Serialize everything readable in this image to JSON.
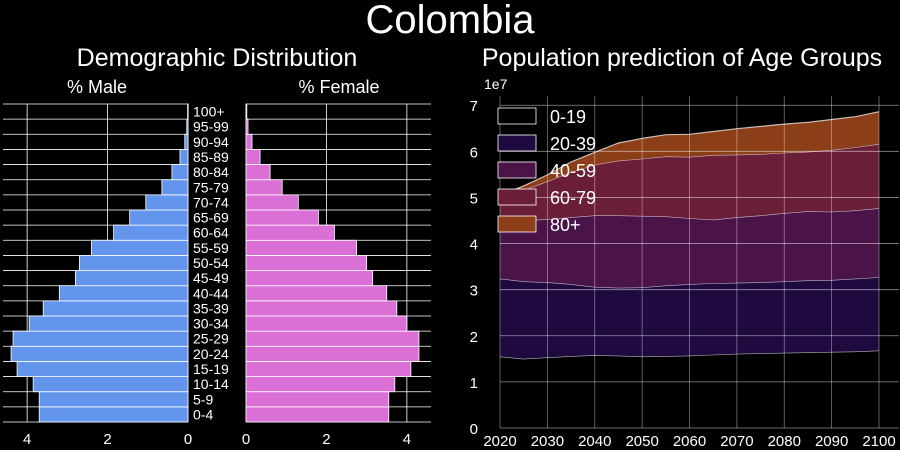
{
  "figure": {
    "title": "Colombia"
  },
  "chart_data": [
    {
      "type": "bar",
      "title": "Demographic Distribution",
      "male_label": "% Male",
      "female_label": "% Female",
      "orientation": "horizontal-pyramid",
      "age_groups": [
        "0-4",
        "5-9",
        "10-14",
        "15-19",
        "20-24",
        "25-29",
        "30-34",
        "35-39",
        "40-44",
        "45-49",
        "50-54",
        "55-59",
        "60-64",
        "65-69",
        "70-74",
        "75-79",
        "80-84",
        "85-89",
        "90-94",
        "95-99",
        "100+"
      ],
      "male": [
        3.7,
        3.7,
        3.85,
        4.25,
        4.4,
        4.35,
        3.95,
        3.6,
        3.2,
        2.8,
        2.7,
        2.4,
        1.85,
        1.45,
        1.05,
        0.65,
        0.4,
        0.2,
        0.08,
        0.03,
        0.01
      ],
      "female": [
        3.55,
        3.55,
        3.7,
        4.1,
        4.3,
        4.3,
        4.0,
        3.75,
        3.5,
        3.15,
        3.0,
        2.75,
        2.2,
        1.8,
        1.3,
        0.9,
        0.6,
        0.35,
        0.15,
        0.05,
        0.02
      ],
      "male_xlim": [
        0,
        4.6
      ],
      "female_xlim": [
        0,
        4.6
      ],
      "male_ticks": [
        4,
        2,
        0
      ],
      "female_ticks": [
        0,
        2,
        4
      ],
      "colors": {
        "male": "#6495ed",
        "female": "#da70d6"
      },
      "grid": true
    },
    {
      "type": "area",
      "stacked": true,
      "title": "Population prediction of Age Groups",
      "scale_label": "1e7",
      "x": [
        2020,
        2025,
        2030,
        2035,
        2040,
        2045,
        2050,
        2055,
        2060,
        2065,
        2070,
        2075,
        2080,
        2085,
        2090,
        2095,
        2100
      ],
      "series": [
        {
          "name": "0-19",
          "color": "#000000",
          "values": [
            1.55,
            1.5,
            1.53,
            1.56,
            1.58,
            1.57,
            1.55,
            1.56,
            1.57,
            1.59,
            1.61,
            1.62,
            1.63,
            1.64,
            1.65,
            1.66,
            1.68
          ]
        },
        {
          "name": "20-39",
          "color": "#1f0a3f",
          "values": [
            1.69,
            1.68,
            1.63,
            1.56,
            1.48,
            1.47,
            1.5,
            1.53,
            1.55,
            1.55,
            1.54,
            1.54,
            1.55,
            1.56,
            1.56,
            1.58,
            1.59
          ]
        },
        {
          "name": "40-59",
          "color": "#4a1449",
          "values": [
            1.15,
            1.32,
            1.37,
            1.45,
            1.55,
            1.57,
            1.55,
            1.5,
            1.43,
            1.38,
            1.42,
            1.45,
            1.48,
            1.5,
            1.48,
            1.48,
            1.5
          ]
        },
        {
          "name": "60-79",
          "color": "#6a1e38",
          "values": [
            0.6,
            0.66,
            0.82,
            0.98,
            1.1,
            1.19,
            1.24,
            1.3,
            1.33,
            1.4,
            1.36,
            1.33,
            1.31,
            1.29,
            1.34,
            1.37,
            1.39
          ]
        },
        {
          "name": "80+",
          "color": "#8b3e18",
          "values": [
            0.06,
            0.09,
            0.14,
            0.22,
            0.27,
            0.38,
            0.44,
            0.47,
            0.49,
            0.51,
            0.56,
            0.6,
            0.62,
            0.64,
            0.66,
            0.66,
            0.7
          ]
        }
      ],
      "xlim": [
        2020,
        2100
      ],
      "ylim": [
        0,
        7.2
      ],
      "yticks": [
        0,
        1,
        2,
        3,
        4,
        5,
        6,
        7
      ],
      "xticks": [
        2020,
        2030,
        2040,
        2050,
        2060,
        2070,
        2080,
        2090,
        2100
      ],
      "grid": true,
      "legend": "upper-left"
    }
  ]
}
